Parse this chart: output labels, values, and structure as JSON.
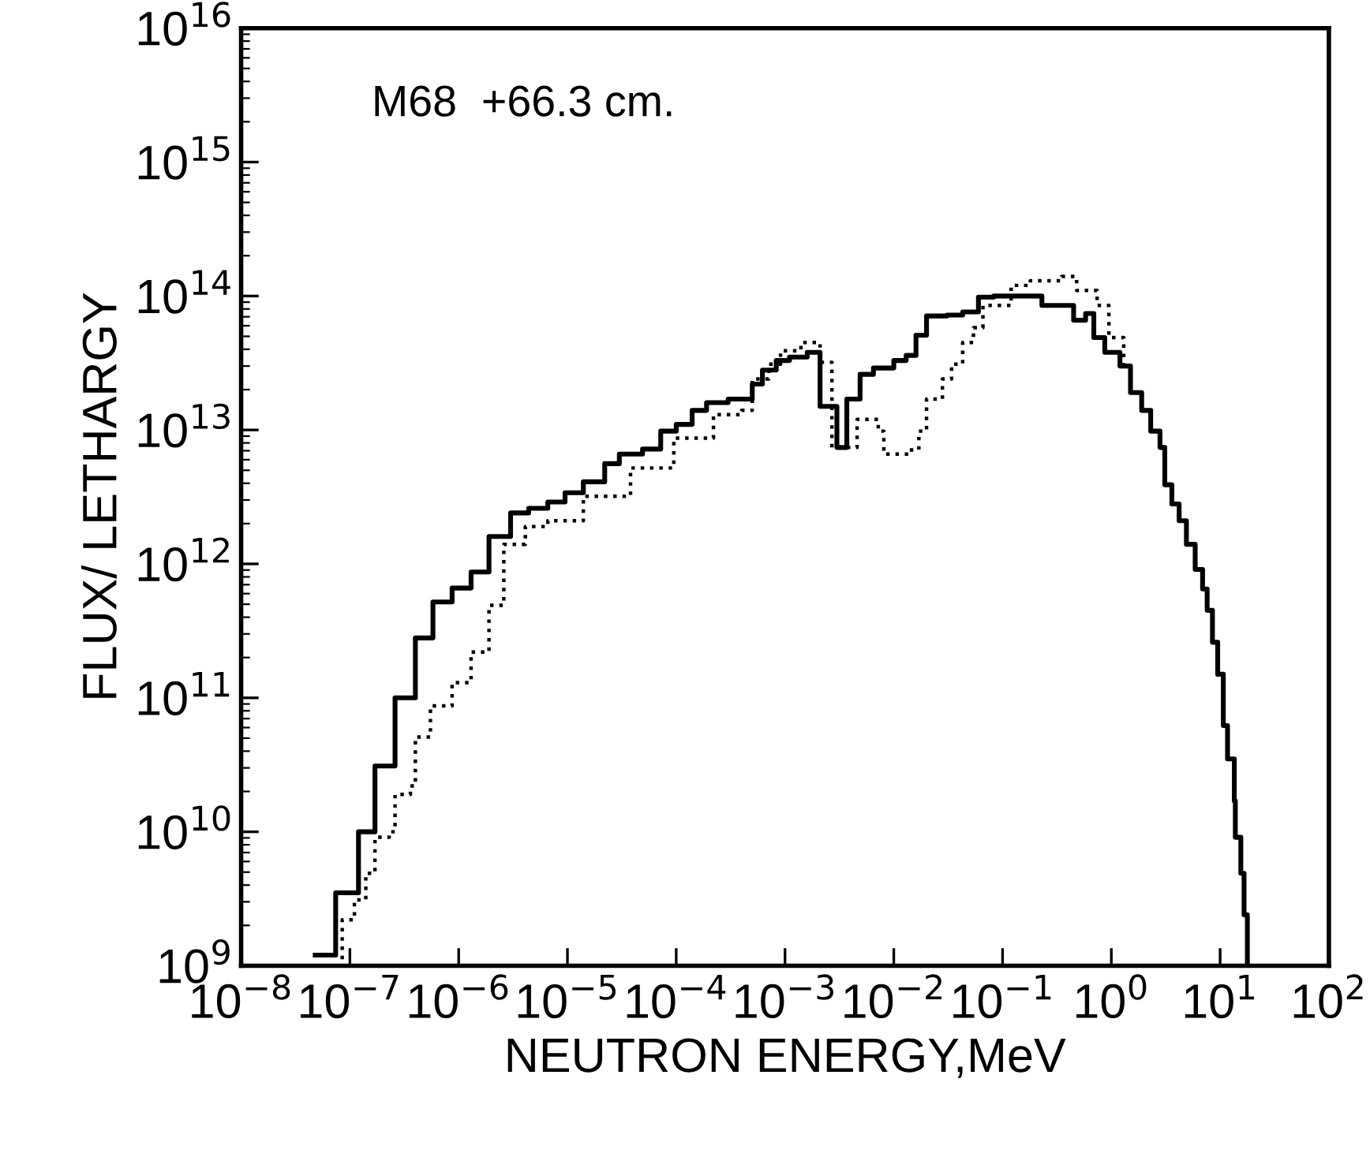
{
  "chart_data": {
    "type": "step",
    "xlabel": "NEUTRON ENERGY,MeV",
    "ylabel": "FLUX/ LETHARGY",
    "annotations": [
      "M68  +66.3 cm."
    ],
    "log": "xy",
    "grid": false,
    "legend": false,
    "xlim": [
      1e-08,
      100
    ],
    "ylim": [
      1000000000.0,
      1e+16
    ],
    "xticks": [
      {
        "value": 1e-08,
        "label": "10$^{−8}$"
      },
      {
        "value": 1e-07,
        "label": "10$^{−7}$"
      },
      {
        "value": 1e-06,
        "label": "10$^{−6}$"
      },
      {
        "value": 1e-05,
        "label": "10$^{−5}$"
      },
      {
        "value": 0.0001,
        "label": "10$^{−4}$"
      },
      {
        "value": 0.001,
        "label": "10$^{−3}$"
      },
      {
        "value": 0.01,
        "label": "10$^{−2}$"
      },
      {
        "value": 0.1,
        "label": "10$^{−1}$"
      },
      {
        "value": 1,
        "label": "10$^{0}$"
      },
      {
        "value": 10,
        "label": "10$^{1}$"
      },
      {
        "value": 100,
        "label": "10$^{2}$"
      }
    ],
    "yticks": [
      {
        "value": 1000000000.0,
        "label": "10$^{9}$"
      },
      {
        "value": 10000000000.0,
        "label": "10$^{10}$"
      },
      {
        "value": 100000000000.0,
        "label": "10$^{11}$"
      },
      {
        "value": 1000000000000.0,
        "label": "10$^{12}$"
      },
      {
        "value": 10000000000000.0,
        "label": "10$^{13}$"
      },
      {
        "value": 100000000000000.0,
        "label": "10$^{14}$"
      },
      {
        "value": 1000000000000000.0,
        "label": "10$^{15}$"
      },
      {
        "value": 1e+16,
        "label": "10$^{16}$"
      }
    ],
    "series": [
      {
        "color": "#000000",
        "line_style": "solid",
        "x": [
          4.8e-08,
          7.4e-08,
          1.2e-07,
          1.7e-07,
          2.6e-07,
          4e-07,
          5.8e-07,
          8.7e-07,
          1.3e-06,
          1.9e-06,
          3e-06,
          4.4e-06,
          6.6e-06,
          9.5e-06,
          1.4e-05,
          2.2e-05,
          3e-05,
          4.9e-05,
          7.2e-05,
          0.0001,
          0.00014,
          0.00019,
          0.0003,
          0.0005,
          0.00062,
          0.00083,
          0.0011,
          0.0016,
          0.0021,
          0.003,
          0.0037,
          0.0049,
          0.0065,
          0.01,
          0.013,
          0.016,
          0.02,
          0.031,
          0.043,
          0.06,
          0.083,
          0.23,
          0.45,
          0.58,
          0.69,
          0.87,
          1.2,
          1.5,
          1.9,
          2.3,
          2.8,
          3.1,
          3.6,
          4.2,
          4.9,
          5.9,
          6.9,
          7.6,
          8.5,
          9.5,
          10.7,
          11.7,
          13.5,
          13.8,
          15.5,
          16.6,
          17.8
        ],
        "values": [
          1200000000.0,
          3500000000.0,
          10000000000.0,
          31000000000.0,
          100000000000.0,
          280000000000.0,
          520000000000.0,
          660000000000.0,
          870000000000.0,
          1600000000000.0,
          2400000000000.0,
          2600000000000.0,
          2900000000000.0,
          3400000000000.0,
          4100000000000.0,
          5600000000000.0,
          6600000000000.0,
          7200000000000.0,
          9800000000000.0,
          11000000000000.0,
          14000000000000.0,
          16000000000000.0,
          17000000000000.0,
          22000000000000.0,
          28000000000000.0,
          33000000000000.0,
          35000000000000.0,
          38000000000000.0,
          15000000000000.0,
          7400000000000.0,
          17000000000000.0,
          26000000000000.0,
          29000000000000.0,
          33000000000000.0,
          36000000000000.0,
          51000000000000.0,
          71000000000000.0,
          72000000000000.0,
          76000000000000.0,
          98000000000000.0,
          100000000000000.0,
          85000000000000.0,
          66000000000000.0,
          74000000000000.0,
          49000000000000.0,
          38000000000000.0,
          30000000000000.0,
          19000000000000.0,
          14000000000000.0,
          9800000000000.0,
          7400000000000.0,
          3900000000000.0,
          2800000000000.0,
          2100000000000.0,
          1400000000000.0,
          910000000000.0,
          650000000000.0,
          450000000000.0,
          260000000000.0,
          150000000000.0,
          62000000000.0,
          35000000000.0,
          17000000000.0,
          9100000000.0,
          4900000000.0,
          2400000000.0,
          1000000000.0
        ]
      },
      {
        "color": "#000000",
        "line_style": "dotted",
        "x": [
          5.4e-08,
          8.5e-08,
          1.1e-07,
          1.4e-07,
          1.7e-07,
          2.3e-07,
          2.6e-07,
          3.6e-07,
          4e-07,
          5.5e-07,
          8.7e-07,
          1.3e-06,
          1.9e-06,
          2.6e-06,
          4.1e-06,
          6.6e-06,
          1.4e-05,
          3.8e-05,
          9.5e-05,
          0.00022,
          0.0004,
          0.0005,
          0.00071,
          0.00091,
          0.0014,
          0.0021,
          0.0027,
          0.0046,
          0.0072,
          0.0081,
          0.014,
          0.017,
          0.02,
          0.028,
          0.034,
          0.043,
          0.054,
          0.066,
          0.12,
          0.18,
          0.35,
          0.48,
          0.74,
          0.95,
          1.3
        ],
        "values": [
          1000000000.0,
          2200000000.0,
          3100000000.0,
          4900000000.0,
          9100000000.0,
          10000000000.0,
          19000000000.0,
          22000000000.0,
          51000000000.0,
          87000000000.0,
          130000000000.0,
          220000000000.0,
          490000000000.0,
          1400000000000.0,
          1900000000000.0,
          2100000000000.0,
          3200000000000.0,
          5200000000000.0,
          8700000000000.0,
          13000000000000.0,
          14000000000000.0,
          24000000000000.0,
          31000000000000.0,
          39000000000000.0,
          45000000000000.0,
          32000000000000.0,
          7400000000000.0,
          12000000000000.0,
          9800000000000.0,
          6600000000000.0,
          7100000000000.0,
          9800000000000.0,
          17000000000000.0,
          24000000000000.0,
          31000000000000.0,
          45000000000000.0,
          58000000000000.0,
          85000000000000.0,
          120000000000000.0,
          130000000000000.0,
          140000000000000.0,
          110000000000000.0,
          85000000000000.0,
          49000000000000.0,
          30000000000000.0
        ]
      }
    ]
  }
}
